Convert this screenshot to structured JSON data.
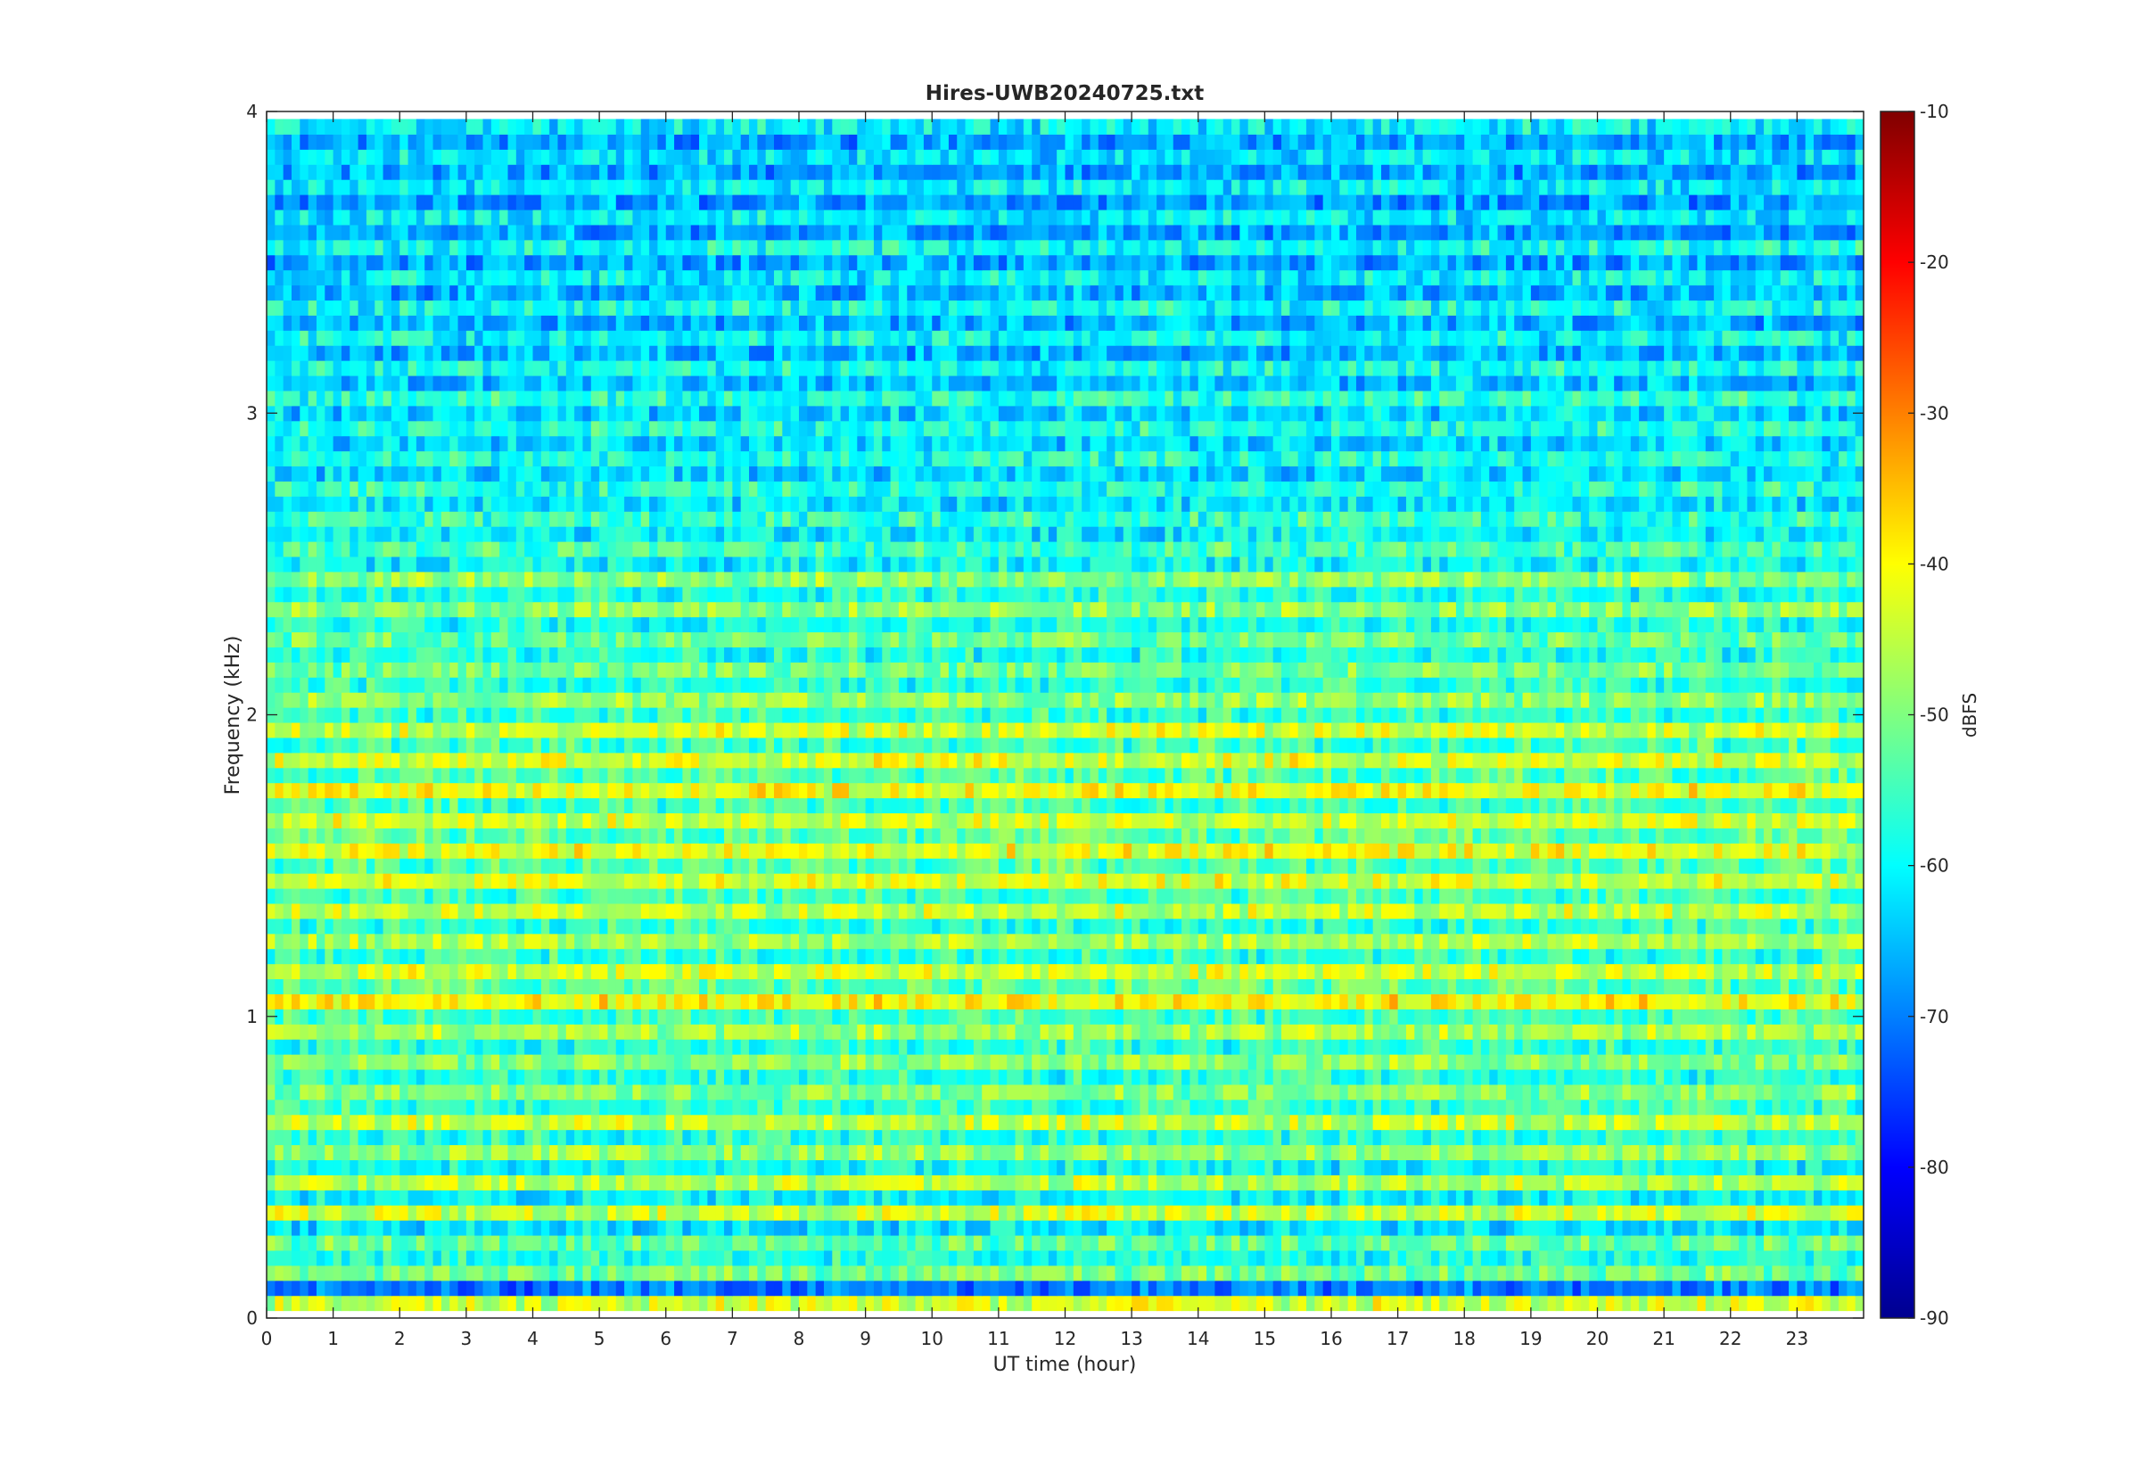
{
  "chart_data": {
    "type": "heatmap",
    "title": "Hires-UWB20240725.txt",
    "xlabel": "UT time (hour)",
    "ylabel": "Frequency (kHz)",
    "colorbar_label": "dBFS",
    "colormap": "jet",
    "xlim": [
      0,
      24
    ],
    "ylim": [
      0,
      4
    ],
    "clim": [
      -90,
      -10
    ],
    "x_ticks": [
      "0",
      "1",
      "2",
      "3",
      "4",
      "5",
      "6",
      "7",
      "8",
      "9",
      "10",
      "11",
      "12",
      "13",
      "14",
      "15",
      "16",
      "17",
      "18",
      "19",
      "20",
      "21",
      "22",
      "23"
    ],
    "y_ticks": [
      "0",
      "1",
      "2",
      "3",
      "4"
    ],
    "colorbar_ticks": [
      "-90",
      "-80",
      "-70",
      "-60",
      "-50",
      "-40",
      "-30",
      "-20",
      "-10"
    ],
    "grid": false,
    "frequency_bands": [
      {
        "f": 0.05,
        "level": -44
      },
      {
        "f": 0.1,
        "level": -70
      },
      {
        "f": 0.15,
        "level": -51
      },
      {
        "f": 0.2,
        "level": -58
      },
      {
        "f": 0.25,
        "level": -52
      },
      {
        "f": 0.3,
        "level": -62
      },
      {
        "f": 0.35,
        "level": -44
      },
      {
        "f": 0.4,
        "level": -60
      },
      {
        "f": 0.45,
        "level": -46
      },
      {
        "f": 0.5,
        "level": -59
      },
      {
        "f": 0.55,
        "level": -48
      },
      {
        "f": 0.6,
        "level": -57
      },
      {
        "f": 0.65,
        "level": -45
      },
      {
        "f": 0.7,
        "level": -56
      },
      {
        "f": 0.75,
        "level": -50
      },
      {
        "f": 0.8,
        "level": -57
      },
      {
        "f": 0.85,
        "level": -49
      },
      {
        "f": 0.9,
        "level": -57
      },
      {
        "f": 0.95,
        "level": -47
      },
      {
        "f": 1.0,
        "level": -55
      },
      {
        "f": 1.05,
        "level": -40
      },
      {
        "f": 1.1,
        "level": -53
      },
      {
        "f": 1.15,
        "level": -44
      },
      {
        "f": 1.2,
        "level": -56
      },
      {
        "f": 1.25,
        "level": -47
      },
      {
        "f": 1.3,
        "level": -56
      },
      {
        "f": 1.35,
        "level": -45
      },
      {
        "f": 1.4,
        "level": -55
      },
      {
        "f": 1.45,
        "level": -43
      },
      {
        "f": 1.5,
        "level": -54
      },
      {
        "f": 1.55,
        "level": -42
      },
      {
        "f": 1.6,
        "level": -53
      },
      {
        "f": 1.65,
        "level": -44
      },
      {
        "f": 1.7,
        "level": -55
      },
      {
        "f": 1.75,
        "level": -41
      },
      {
        "f": 1.8,
        "level": -54
      },
      {
        "f": 1.85,
        "level": -43
      },
      {
        "f": 1.9,
        "level": -55
      },
      {
        "f": 1.95,
        "level": -44
      },
      {
        "f": 2.0,
        "level": -56
      },
      {
        "f": 2.05,
        "level": -49
      },
      {
        "f": 2.1,
        "level": -57
      },
      {
        "f": 2.15,
        "level": -51
      },
      {
        "f": 2.2,
        "level": -58
      },
      {
        "f": 2.25,
        "level": -52
      },
      {
        "f": 2.3,
        "level": -58
      },
      {
        "f": 2.35,
        "level": -49
      },
      {
        "f": 2.4,
        "level": -58
      },
      {
        "f": 2.45,
        "level": -49
      },
      {
        "f": 2.5,
        "level": -60
      },
      {
        "f": 2.55,
        "level": -55
      },
      {
        "f": 2.6,
        "level": -61
      },
      {
        "f": 2.65,
        "level": -56
      },
      {
        "f": 2.7,
        "level": -62
      },
      {
        "f": 2.75,
        "level": -57
      },
      {
        "f": 2.8,
        "level": -63
      },
      {
        "f": 2.85,
        "level": -58
      },
      {
        "f": 2.9,
        "level": -63
      },
      {
        "f": 2.95,
        "level": -58
      },
      {
        "f": 3.0,
        "level": -63
      },
      {
        "f": 3.05,
        "level": -57
      },
      {
        "f": 3.1,
        "level": -65
      },
      {
        "f": 3.15,
        "level": -59
      },
      {
        "f": 3.2,
        "level": -66
      },
      {
        "f": 3.25,
        "level": -60
      },
      {
        "f": 3.3,
        "level": -66
      },
      {
        "f": 3.35,
        "level": -59
      },
      {
        "f": 3.4,
        "level": -66
      },
      {
        "f": 3.45,
        "level": -61
      },
      {
        "f": 3.5,
        "level": -67
      },
      {
        "f": 3.55,
        "level": -59
      },
      {
        "f": 3.6,
        "level": -67
      },
      {
        "f": 3.65,
        "level": -61
      },
      {
        "f": 3.7,
        "level": -68
      },
      {
        "f": 3.75,
        "level": -61
      },
      {
        "f": 3.8,
        "level": -67
      },
      {
        "f": 3.85,
        "level": -62
      },
      {
        "f": 3.9,
        "level": -67
      },
      {
        "f": 3.95,
        "level": -61
      }
    ]
  }
}
